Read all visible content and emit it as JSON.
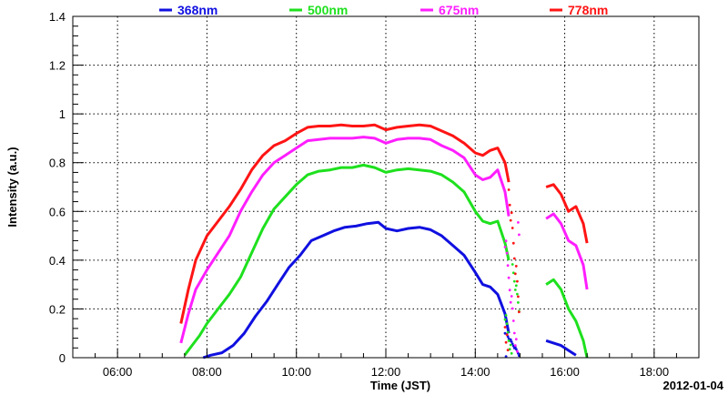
{
  "chart_data": {
    "type": "line",
    "xlabel": "Time (JST)",
    "ylabel": "Intensity (a.u.)",
    "date": "2012-01-04",
    "xlim": [
      "05:00",
      "19:00"
    ],
    "ylim": [
      0,
      1.4
    ],
    "x_ticks": [
      "06:00",
      "08:00",
      "10:00",
      "12:00",
      "14:00",
      "16:00",
      "18:00"
    ],
    "y_ticks": [
      "0",
      "0.2",
      "0.4",
      "0.6",
      "0.8",
      "1",
      "1.2",
      "1.4"
    ],
    "grid": true,
    "legend_position": "top",
    "series": [
      {
        "name": "368nm",
        "color": "#1010e0",
        "segments": [
          [
            [
              "07:55",
              0.0
            ],
            [
              "08:05",
              0.01
            ],
            [
              "08:20",
              0.02
            ],
            [
              "08:35",
              0.05
            ],
            [
              "08:50",
              0.1
            ],
            [
              "09:05",
              0.17
            ],
            [
              "09:20",
              0.23
            ],
            [
              "09:35",
              0.3
            ],
            [
              "09:50",
              0.37
            ],
            [
              "10:05",
              0.42
            ],
            [
              "10:20",
              0.48
            ],
            [
              "10:35",
              0.5
            ],
            [
              "10:50",
              0.52
            ],
            [
              "11:05",
              0.535
            ],
            [
              "11:20",
              0.54
            ],
            [
              "11:35",
              0.55
            ],
            [
              "11:50",
              0.555
            ],
            [
              "12:00",
              0.53
            ],
            [
              "12:15",
              0.52
            ],
            [
              "12:30",
              0.53
            ],
            [
              "12:45",
              0.535
            ],
            [
              "13:00",
              0.525
            ],
            [
              "13:15",
              0.5
            ],
            [
              "13:30",
              0.46
            ],
            [
              "13:45",
              0.42
            ],
            [
              "14:00",
              0.35
            ],
            [
              "14:10",
              0.3
            ],
            [
              "14:20",
              0.29
            ],
            [
              "14:30",
              0.26
            ],
            [
              "14:40",
              0.18
            ],
            [
              "14:45",
              0.1
            ]
          ],
          [
            [
              "15:35",
              0.07
            ],
            [
              "15:45",
              0.06
            ],
            [
              "15:55",
              0.05
            ],
            [
              "16:05",
              0.03
            ],
            [
              "16:15",
              0.01
            ]
          ]
        ]
      },
      {
        "name": "500nm",
        "color": "#1ee01e",
        "segments": [
          [
            [
              "07:30",
              0.01
            ],
            [
              "07:40",
              0.05
            ],
            [
              "07:50",
              0.09
            ],
            [
              "08:00",
              0.14
            ],
            [
              "08:15",
              0.2
            ],
            [
              "08:30",
              0.26
            ],
            [
              "08:45",
              0.33
            ],
            [
              "09:00",
              0.43
            ],
            [
              "09:15",
              0.53
            ],
            [
              "09:30",
              0.61
            ],
            [
              "09:45",
              0.66
            ],
            [
              "10:00",
              0.71
            ],
            [
              "10:15",
              0.75
            ],
            [
              "10:30",
              0.765
            ],
            [
              "10:45",
              0.77
            ],
            [
              "11:00",
              0.78
            ],
            [
              "11:15",
              0.78
            ],
            [
              "11:30",
              0.79
            ],
            [
              "11:45",
              0.78
            ],
            [
              "12:00",
              0.76
            ],
            [
              "12:15",
              0.77
            ],
            [
              "12:30",
              0.775
            ],
            [
              "12:45",
              0.77
            ],
            [
              "13:00",
              0.765
            ],
            [
              "13:15",
              0.75
            ],
            [
              "13:30",
              0.72
            ],
            [
              "13:45",
              0.68
            ],
            [
              "14:00",
              0.6
            ],
            [
              "14:10",
              0.56
            ],
            [
              "14:20",
              0.55
            ],
            [
              "14:30",
              0.56
            ],
            [
              "14:40",
              0.47
            ],
            [
              "14:45",
              0.4
            ]
          ],
          [
            [
              "15:35",
              0.3
            ],
            [
              "15:45",
              0.32
            ],
            [
              "15:55",
              0.28
            ],
            [
              "16:05",
              0.2
            ],
            [
              "16:15",
              0.15
            ],
            [
              "16:25",
              0.07
            ],
            [
              "16:30",
              0.0
            ]
          ]
        ]
      },
      {
        "name": "675nm",
        "color": "#ff1eff",
        "segments": [
          [
            [
              "07:25",
              0.06
            ],
            [
              "07:35",
              0.18
            ],
            [
              "07:45",
              0.28
            ],
            [
              "08:00",
              0.36
            ],
            [
              "08:15",
              0.43
            ],
            [
              "08:30",
              0.5
            ],
            [
              "08:45",
              0.6
            ],
            [
              "09:00",
              0.68
            ],
            [
              "09:15",
              0.75
            ],
            [
              "09:30",
              0.8
            ],
            [
              "09:45",
              0.83
            ],
            [
              "10:00",
              0.86
            ],
            [
              "10:15",
              0.89
            ],
            [
              "10:30",
              0.895
            ],
            [
              "10:45",
              0.9
            ],
            [
              "11:00",
              0.9
            ],
            [
              "11:15",
              0.9
            ],
            [
              "11:30",
              0.905
            ],
            [
              "11:45",
              0.9
            ],
            [
              "12:00",
              0.88
            ],
            [
              "12:15",
              0.895
            ],
            [
              "12:30",
              0.9
            ],
            [
              "12:45",
              0.9
            ],
            [
              "13:00",
              0.895
            ],
            [
              "13:15",
              0.87
            ],
            [
              "13:30",
              0.85
            ],
            [
              "13:45",
              0.82
            ],
            [
              "14:00",
              0.75
            ],
            [
              "14:10",
              0.73
            ],
            [
              "14:20",
              0.74
            ],
            [
              "14:30",
              0.77
            ],
            [
              "14:40",
              0.68
            ],
            [
              "14:45",
              0.58
            ]
          ],
          [
            [
              "15:35",
              0.57
            ],
            [
              "15:45",
              0.59
            ],
            [
              "15:55",
              0.55
            ],
            [
              "16:05",
              0.48
            ],
            [
              "16:15",
              0.46
            ],
            [
              "16:25",
              0.38
            ],
            [
              "16:30",
              0.28
            ]
          ]
        ]
      },
      {
        "name": "778nm",
        "color": "#ff1414",
        "segments": [
          [
            [
              "07:25",
              0.14
            ],
            [
              "07:35",
              0.28
            ],
            [
              "07:45",
              0.4
            ],
            [
              "08:00",
              0.5
            ],
            [
              "08:15",
              0.56
            ],
            [
              "08:30",
              0.62
            ],
            [
              "08:45",
              0.69
            ],
            [
              "09:00",
              0.77
            ],
            [
              "09:15",
              0.83
            ],
            [
              "09:30",
              0.87
            ],
            [
              "09:45",
              0.89
            ],
            [
              "10:00",
              0.92
            ],
            [
              "10:15",
              0.945
            ],
            [
              "10:30",
              0.95
            ],
            [
              "10:45",
              0.95
            ],
            [
              "11:00",
              0.955
            ],
            [
              "11:15",
              0.95
            ],
            [
              "11:30",
              0.95
            ],
            [
              "11:45",
              0.955
            ],
            [
              "12:00",
              0.935
            ],
            [
              "12:15",
              0.945
            ],
            [
              "12:30",
              0.95
            ],
            [
              "12:45",
              0.955
            ],
            [
              "13:00",
              0.95
            ],
            [
              "13:15",
              0.93
            ],
            [
              "13:30",
              0.91
            ],
            [
              "13:45",
              0.88
            ],
            [
              "14:00",
              0.84
            ],
            [
              "14:10",
              0.83
            ],
            [
              "14:20",
              0.85
            ],
            [
              "14:30",
              0.86
            ],
            [
              "14:40",
              0.8
            ],
            [
              "14:45",
              0.72
            ]
          ],
          [
            [
              "15:35",
              0.7
            ],
            [
              "15:45",
              0.71
            ],
            [
              "15:55",
              0.67
            ],
            [
              "16:05",
              0.6
            ],
            [
              "16:15",
              0.62
            ],
            [
              "16:25",
              0.55
            ],
            [
              "16:30",
              0.47
            ]
          ]
        ]
      }
    ],
    "scatter_window": [
      "14:40",
      "15:00"
    ]
  }
}
